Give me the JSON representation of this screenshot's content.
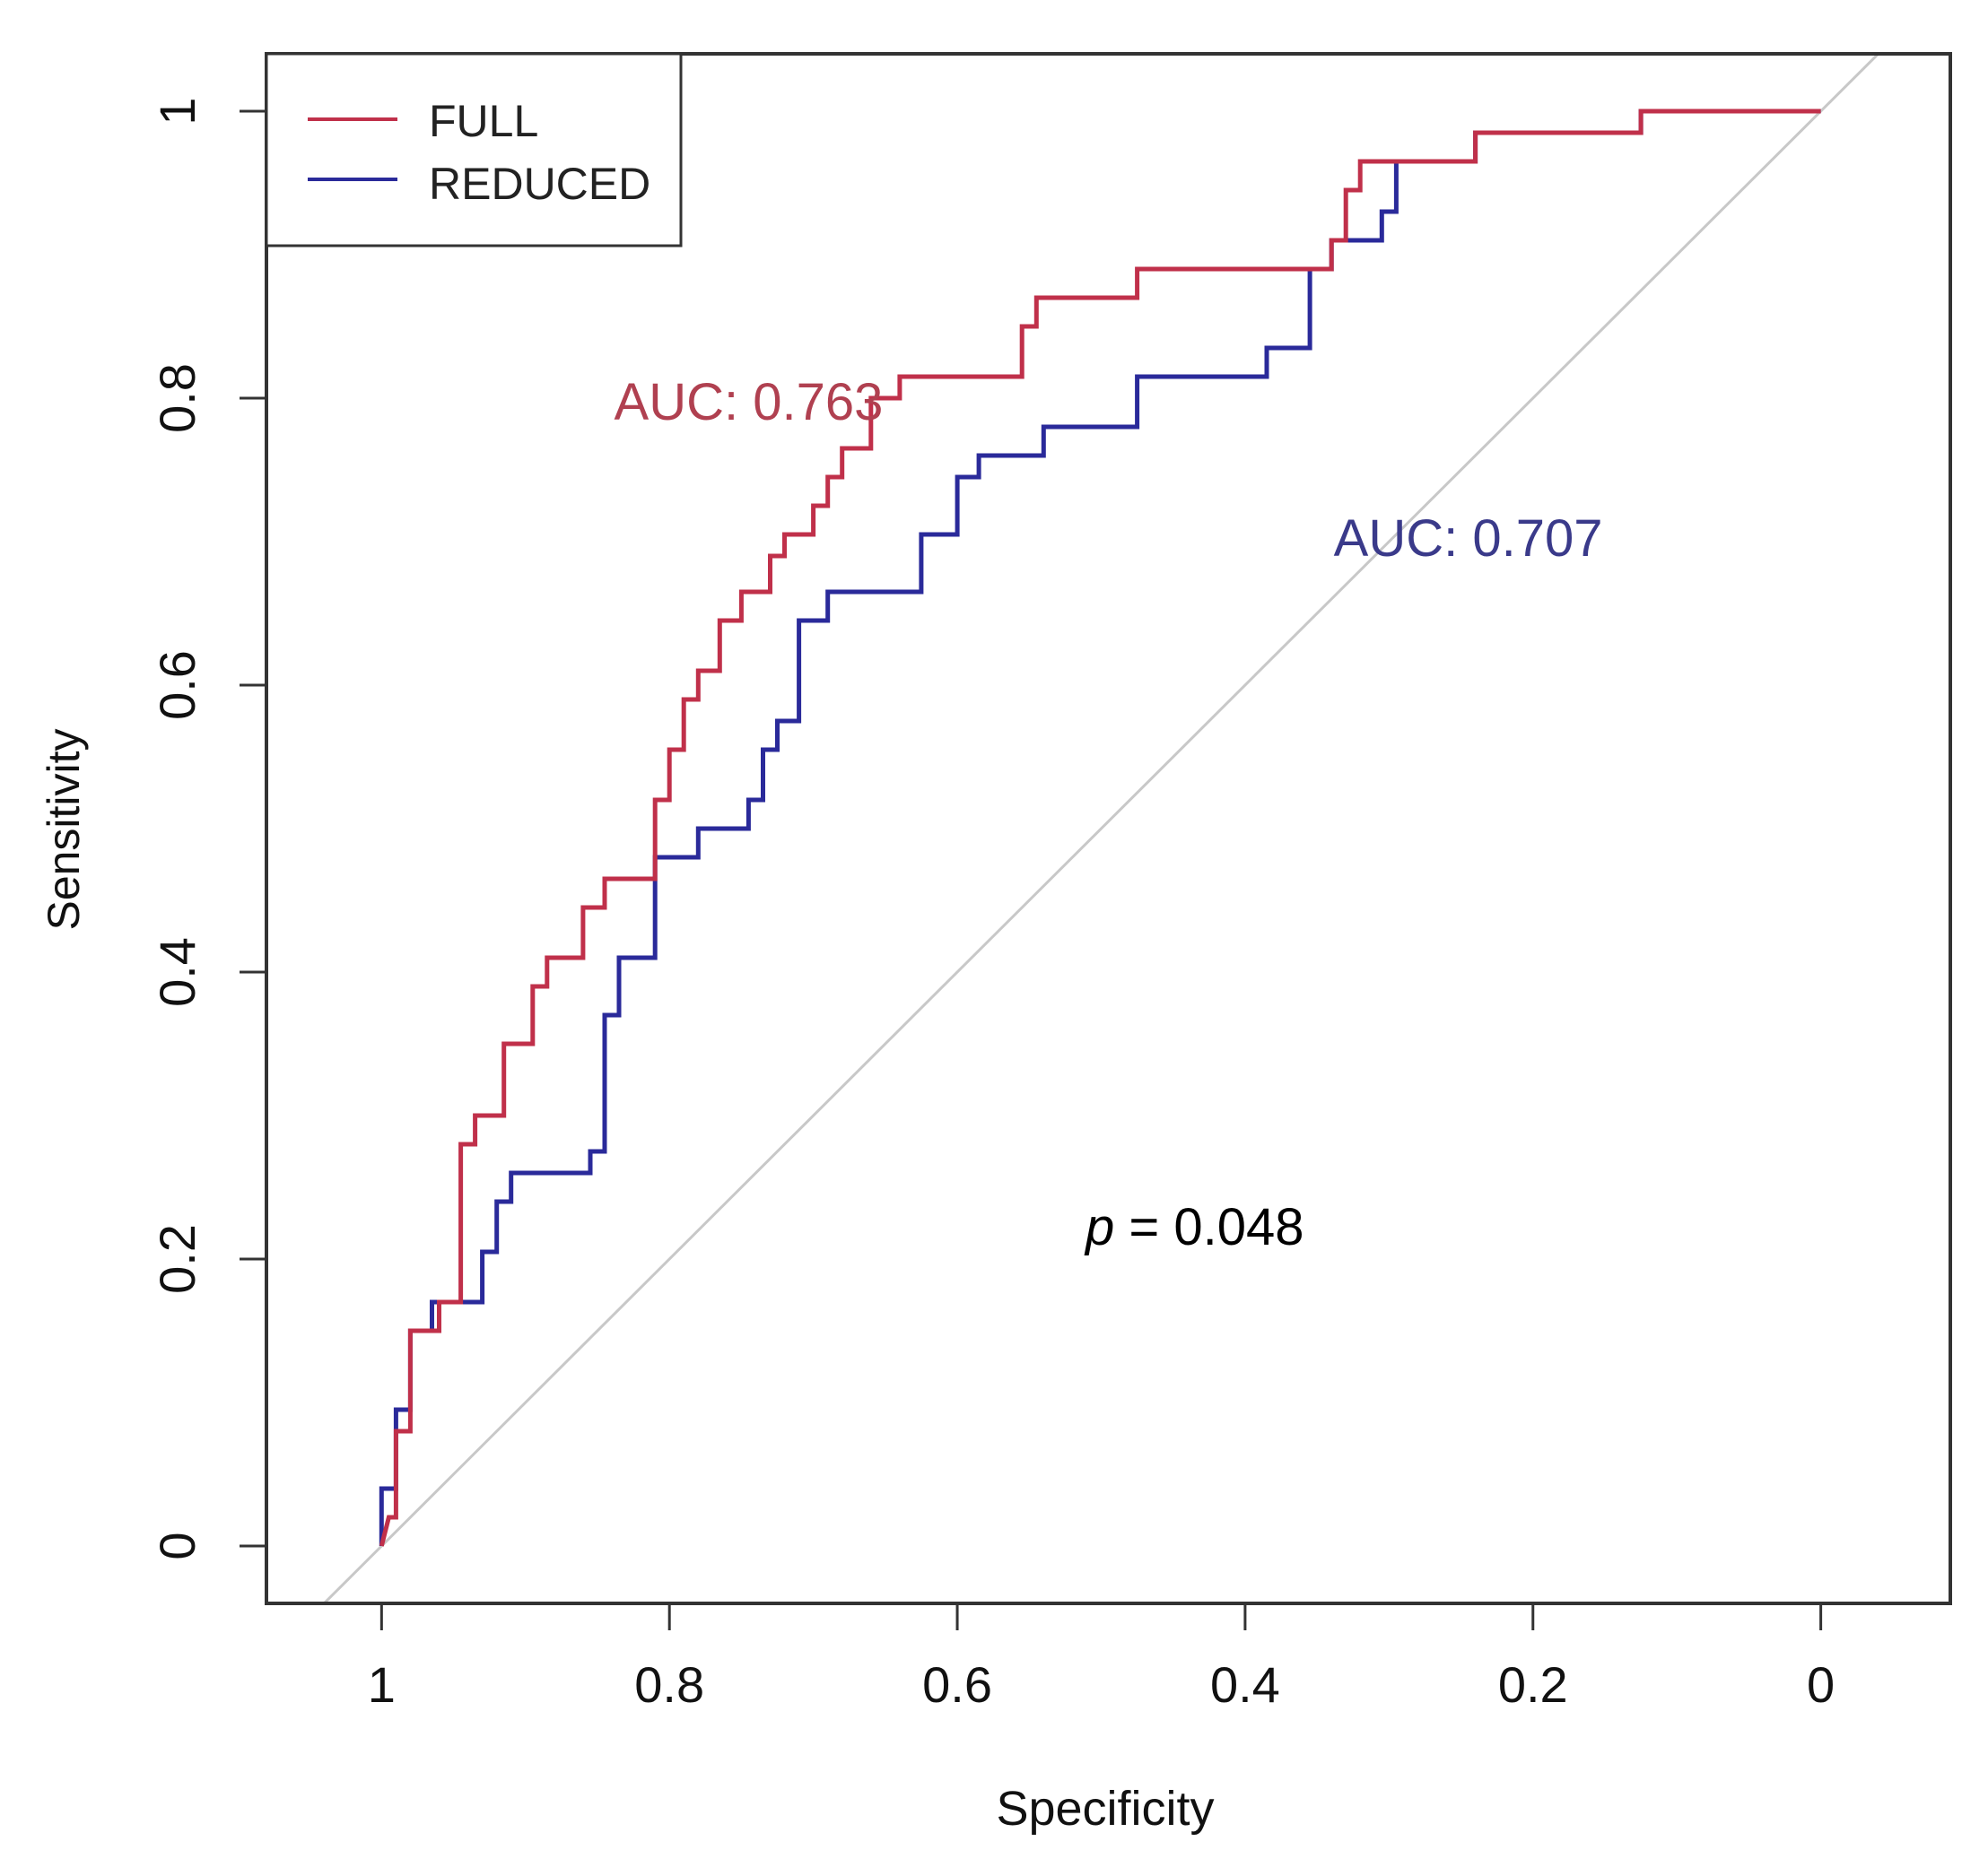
{
  "chart_data": {
    "type": "line",
    "title": "",
    "xlabel": "Specificity",
    "ylabel": "Sensitivity",
    "xlim": [
      1.08,
      -0.09
    ],
    "ylim": [
      -0.04,
      1.04
    ],
    "x_reversed": true,
    "xticks": [
      1,
      0.8,
      0.6,
      0.4,
      0.2,
      0
    ],
    "xtick_labels": [
      "1",
      "0.8",
      "0.6",
      "0.4",
      "0.2",
      "0"
    ],
    "yticks": [
      0,
      0.2,
      0.4,
      0.6,
      0.8,
      1
    ],
    "ytick_labels": [
      "0",
      "0.2",
      "0.4",
      "0.6",
      "0.8",
      "1"
    ],
    "grid": false,
    "legend": {
      "position": "top-left",
      "entries": [
        "FULL",
        "REDUCED"
      ]
    },
    "reference_line": {
      "from": [
        1,
        0
      ],
      "to": [
        0,
        1
      ],
      "color": "#c8c8c8"
    },
    "series": [
      {
        "name": "FULL",
        "color": "#c0304a",
        "auc_label": "AUC: 0.763",
        "points": [
          [
            1.0,
            0.0
          ],
          [
            0.995,
            0.02
          ],
          [
            0.99,
            0.02
          ],
          [
            0.99,
            0.08
          ],
          [
            0.98,
            0.08
          ],
          [
            0.98,
            0.15
          ],
          [
            0.96,
            0.15
          ],
          [
            0.96,
            0.17
          ],
          [
            0.945,
            0.17
          ],
          [
            0.945,
            0.28
          ],
          [
            0.935,
            0.28
          ],
          [
            0.935,
            0.3
          ],
          [
            0.915,
            0.3
          ],
          [
            0.915,
            0.35
          ],
          [
            0.895,
            0.35
          ],
          [
            0.895,
            0.39
          ],
          [
            0.885,
            0.39
          ],
          [
            0.885,
            0.41
          ],
          [
            0.86,
            0.41
          ],
          [
            0.86,
            0.445
          ],
          [
            0.845,
            0.445
          ],
          [
            0.845,
            0.465
          ],
          [
            0.81,
            0.465
          ],
          [
            0.81,
            0.52
          ],
          [
            0.8,
            0.52
          ],
          [
            0.8,
            0.555
          ],
          [
            0.79,
            0.555
          ],
          [
            0.79,
            0.59
          ],
          [
            0.78,
            0.59
          ],
          [
            0.78,
            0.61
          ],
          [
            0.765,
            0.61
          ],
          [
            0.765,
            0.645
          ],
          [
            0.75,
            0.645
          ],
          [
            0.75,
            0.665
          ],
          [
            0.73,
            0.665
          ],
          [
            0.73,
            0.69
          ],
          [
            0.72,
            0.69
          ],
          [
            0.72,
            0.705
          ],
          [
            0.7,
            0.705
          ],
          [
            0.7,
            0.725
          ],
          [
            0.69,
            0.725
          ],
          [
            0.69,
            0.745
          ],
          [
            0.68,
            0.745
          ],
          [
            0.68,
            0.765
          ],
          [
            0.66,
            0.765
          ],
          [
            0.66,
            0.8
          ],
          [
            0.64,
            0.8
          ],
          [
            0.64,
            0.815
          ],
          [
            0.555,
            0.815
          ],
          [
            0.555,
            0.85
          ],
          [
            0.545,
            0.85
          ],
          [
            0.545,
            0.87
          ],
          [
            0.475,
            0.87
          ],
          [
            0.475,
            0.89
          ],
          [
            0.34,
            0.89
          ],
          [
            0.34,
            0.91
          ],
          [
            0.33,
            0.91
          ],
          [
            0.33,
            0.945
          ],
          [
            0.32,
            0.945
          ],
          [
            0.32,
            0.965
          ],
          [
            0.24,
            0.965
          ],
          [
            0.24,
            0.985
          ],
          [
            0.125,
            0.985
          ],
          [
            0.125,
            1.0
          ],
          [
            0.0,
            1.0
          ]
        ]
      },
      {
        "name": "REDUCED",
        "color": "#2a2a9a",
        "auc_label": "AUC: 0.707",
        "points": [
          [
            1.0,
            0.0
          ],
          [
            1.0,
            0.04
          ],
          [
            0.99,
            0.04
          ],
          [
            0.99,
            0.095
          ],
          [
            0.98,
            0.095
          ],
          [
            0.98,
            0.15
          ],
          [
            0.965,
            0.15
          ],
          [
            0.965,
            0.17
          ],
          [
            0.93,
            0.17
          ],
          [
            0.93,
            0.205
          ],
          [
            0.92,
            0.205
          ],
          [
            0.92,
            0.24
          ],
          [
            0.91,
            0.24
          ],
          [
            0.91,
            0.26
          ],
          [
            0.855,
            0.26
          ],
          [
            0.855,
            0.275
          ],
          [
            0.845,
            0.275
          ],
          [
            0.845,
            0.37
          ],
          [
            0.835,
            0.37
          ],
          [
            0.835,
            0.41
          ],
          [
            0.81,
            0.41
          ],
          [
            0.81,
            0.48
          ],
          [
            0.78,
            0.48
          ],
          [
            0.78,
            0.5
          ],
          [
            0.745,
            0.5
          ],
          [
            0.745,
            0.52
          ],
          [
            0.735,
            0.52
          ],
          [
            0.735,
            0.555
          ],
          [
            0.725,
            0.555
          ],
          [
            0.725,
            0.575
          ],
          [
            0.71,
            0.575
          ],
          [
            0.71,
            0.645
          ],
          [
            0.69,
            0.645
          ],
          [
            0.69,
            0.665
          ],
          [
            0.625,
            0.665
          ],
          [
            0.625,
            0.705
          ],
          [
            0.6,
            0.705
          ],
          [
            0.6,
            0.745
          ],
          [
            0.585,
            0.745
          ],
          [
            0.585,
            0.76
          ],
          [
            0.54,
            0.76
          ],
          [
            0.54,
            0.78
          ],
          [
            0.475,
            0.78
          ],
          [
            0.475,
            0.815
          ],
          [
            0.385,
            0.815
          ],
          [
            0.385,
            0.835
          ],
          [
            0.355,
            0.835
          ],
          [
            0.355,
            0.89
          ],
          [
            0.34,
            0.89
          ],
          [
            0.34,
            0.91
          ],
          [
            0.305,
            0.91
          ],
          [
            0.305,
            0.93
          ],
          [
            0.295,
            0.93
          ],
          [
            0.295,
            0.965
          ],
          [
            0.24,
            0.965
          ],
          [
            0.24,
            0.985
          ],
          [
            0.125,
            0.985
          ],
          [
            0.125,
            1.0
          ],
          [
            0.0,
            1.0
          ]
        ]
      }
    ],
    "annotations": [
      {
        "text": "AUC: 0.763",
        "x": 0.745,
        "y": 0.785,
        "color": "#b04050"
      },
      {
        "text": "AUC: 0.707",
        "x": 0.245,
        "y": 0.69,
        "color": "#3a3a8a"
      },
      {
        "text_italic": "p",
        "text": " = 0.048",
        "x": 0.435,
        "y": 0.21,
        "color": "#000000"
      }
    ]
  }
}
